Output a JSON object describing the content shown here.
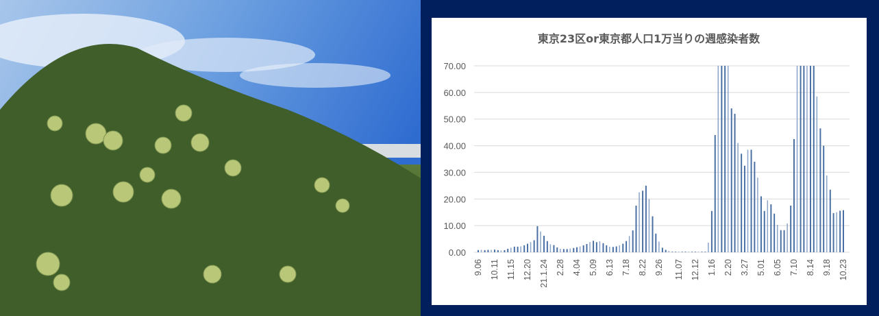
{
  "colors": {
    "frame": "#001f5c",
    "bar": "#4a6fa5",
    "bar_light": "#8aa3c8",
    "grid": "#d9d9d9"
  },
  "chart_data": {
    "type": "bar",
    "title": "東京23区or東京都人口1万当りの週感染者数",
    "xlabel": "",
    "ylabel": "",
    "ylim": [
      0,
      70
    ],
    "yticks": [
      "0.00",
      "10.00",
      "20.00",
      "30.00",
      "40.00",
      "50.00",
      "60.00",
      "70.00"
    ],
    "grid": true,
    "legend": "none",
    "categories": [
      "9.06",
      "",
      "",
      "",
      "",
      "10.11",
      "",
      "",
      "",
      "",
      "11.15",
      "",
      "",
      "",
      "",
      "12.20",
      "",
      "",
      "",
      "",
      "21.1.24",
      "",
      "",
      "",
      "",
      "2.28",
      "",
      "",
      "",
      "",
      "4.04",
      "",
      "",
      "",
      "",
      "5.09",
      "",
      "",
      "",
      "",
      "6.13",
      "",
      "",
      "",
      "",
      "7.18",
      "",
      "",
      "",
      "",
      "8.22",
      "",
      "",
      "",
      "",
      "9.26",
      "",
      "",
      "",
      "",
      "",
      "11.07",
      "",
      "",
      "",
      "",
      "12.12",
      "",
      "",
      "",
      "",
      "1.16",
      "",
      "",
      "",
      "",
      "2.20",
      "",
      "",
      "",
      "",
      "3.27",
      "",
      "",
      "",
      "",
      "5.01",
      "",
      "",
      "",
      "",
      "6.05",
      "",
      "",
      "",
      "",
      "7.10",
      "",
      "",
      "",
      "",
      "8.14",
      "",
      "",
      "",
      "",
      "9.18",
      "",
      "",
      "",
      "",
      "10.23"
    ],
    "values": [
      0.8,
      0.9,
      0.8,
      0.9,
      0.9,
      1.0,
      0.8,
      0.7,
      0.8,
      1.3,
      1.7,
      2.1,
      2.1,
      2.2,
      2.6,
      3.2,
      3.8,
      4.5,
      9.8,
      7.8,
      6.2,
      4.2,
      3.0,
      2.7,
      1.8,
      1.3,
      1.2,
      1.2,
      1.4,
      1.6,
      1.9,
      2.2,
      2.6,
      3.1,
      3.8,
      4.3,
      3.8,
      4.1,
      3.4,
      2.6,
      2.1,
      2.0,
      2.2,
      2.6,
      3.2,
      4.2,
      6.1,
      8.2,
      17.5,
      22.5,
      23.1,
      25.0,
      20.0,
      13.5,
      7.0,
      4.0,
      1.7,
      0.9,
      0.5,
      0.2,
      0.2,
      0.2,
      0.2,
      0.2,
      0.2,
      0.2,
      0.2,
      0.2,
      0.2,
      0.2,
      3.6,
      15.5,
      44,
      70,
      70,
      70,
      70,
      54,
      52,
      41,
      37,
      32.5,
      38.5,
      38.5,
      34,
      28,
      21,
      15.5,
      19.5,
      18,
      14.5,
      10.3,
      8.3,
      8.3,
      10.8,
      17.5,
      42.5,
      70,
      70,
      70,
      70,
      70,
      70,
      58.5,
      46.5,
      40,
      28.8,
      23.5,
      14.7,
      15,
      15.6,
      15.8
    ]
  }
}
